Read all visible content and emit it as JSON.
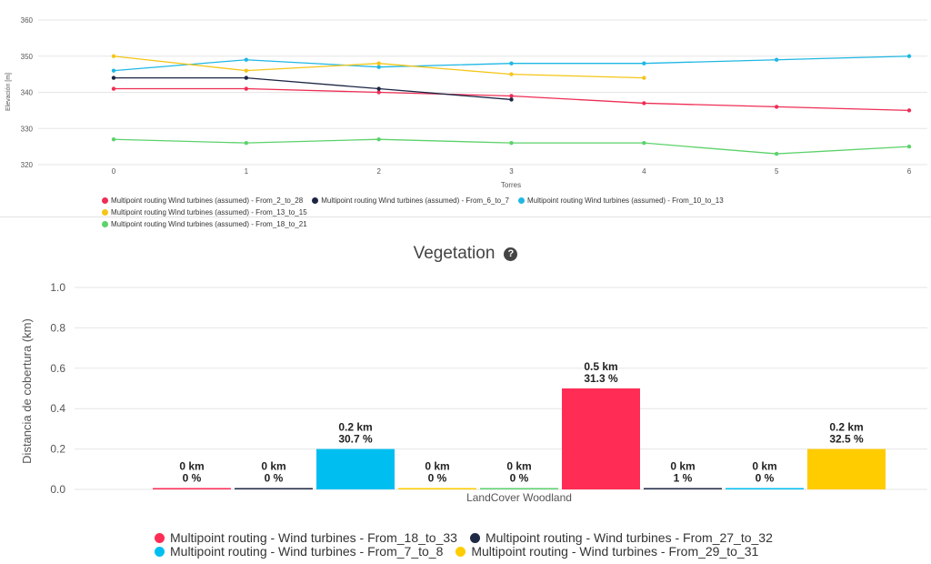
{
  "top_chart": {
    "ylabel": "Elevación [m]",
    "xlabel": "Torres",
    "legend": [
      {
        "label": "Multipoint routing Wind turbines (assumed) - From_2_to_28",
        "color": "#ee2e55"
      },
      {
        "label": "Multipoint routing Wind turbines (assumed) - From_6_to_7",
        "color": "#1c2544"
      },
      {
        "label": "Multipoint routing Wind turbines (assumed) - From_10_to_13",
        "color": "#20b7e4"
      },
      {
        "label": "Multipoint routing Wind turbines (assumed) - From_13_to_15",
        "color": "#f5c518"
      },
      {
        "label": "Multipoint routing Wind turbines (assumed) - From_18_to_21",
        "color": "#5cd26a"
      }
    ]
  },
  "bottom_chart": {
    "title": "Vegetation",
    "help_icon": "help-circle-icon",
    "ylabel": "Distancia de cobertura (km)",
    "category_label": "LandCover Woodland",
    "legend": [
      {
        "label": "Multipoint routing - Wind turbines - From_18_to_33",
        "color": "#ff2d55"
      },
      {
        "label": "Multipoint routing - Wind turbines - From_27_to_32",
        "color": "#1f2a44"
      },
      {
        "label": "Multipoint routing - Wind turbines - From_7_to_8",
        "color": "#00bff0"
      },
      {
        "label": "Multipoint routing - Wind turbines - From_29_to_31",
        "color": "#ffcc00"
      }
    ]
  },
  "chart_data": [
    {
      "type": "line",
      "xlabel": "Torres",
      "ylabel": "Elevación [m]",
      "xlim": [
        0,
        6
      ],
      "ylim": [
        320,
        360
      ],
      "x_ticks": [
        0,
        1,
        2,
        3,
        4,
        5,
        6
      ],
      "y_ticks": [
        320,
        330,
        340,
        350,
        360
      ],
      "grid": true,
      "legend_position": "bottom",
      "series": [
        {
          "name": "Multipoint routing Wind turbines (assumed) - From_2_to_28",
          "color": "#ee2e55",
          "x": [
            0,
            1,
            2,
            3,
            4,
            5,
            6
          ],
          "y": [
            341,
            341,
            340,
            339,
            337,
            336,
            335
          ]
        },
        {
          "name": "Multipoint routing Wind turbines (assumed) - From_6_to_7",
          "color": "#1c2544",
          "x": [
            0,
            1,
            2,
            3
          ],
          "y": [
            344,
            344,
            341,
            338
          ]
        },
        {
          "name": "Multipoint routing Wind turbines (assumed) - From_10_to_13",
          "color": "#20b7e4",
          "x": [
            0,
            1,
            2,
            3,
            4,
            5,
            6
          ],
          "y": [
            346,
            349,
            347,
            348,
            348,
            349,
            350
          ]
        },
        {
          "name": "Multipoint routing Wind turbines (assumed) - From_13_to_15",
          "color": "#f5c518",
          "x": [
            0,
            1,
            2,
            3,
            4
          ],
          "y": [
            350,
            346,
            348,
            345,
            344
          ]
        },
        {
          "name": "Multipoint routing Wind turbines (assumed) - From_18_to_21",
          "color": "#5cd26a",
          "x": [
            0,
            1,
            2,
            3,
            4,
            5,
            6
          ],
          "y": [
            327,
            326,
            327,
            326,
            326,
            323,
            325
          ]
        }
      ]
    },
    {
      "type": "bar",
      "title": "Vegetation",
      "categories": [
        "LandCover Woodland"
      ],
      "ylabel": "Distancia de cobertura (km)",
      "ylim": [
        0,
        1.0
      ],
      "y_ticks": [
        "0.0",
        "0.2",
        "0.4",
        "0.6",
        "0.8",
        "1.0"
      ],
      "grid": true,
      "legend_position": "bottom",
      "bars": [
        {
          "value": 0.0,
          "label_km": "0 km",
          "label_pct": "0 %",
          "color": "#ff2d55"
        },
        {
          "value": 0.0,
          "label_km": "0 km",
          "label_pct": "0 %",
          "color": "#1f2a44"
        },
        {
          "value": 0.2,
          "label_km": "0.2 km",
          "label_pct": "30.7 %",
          "color": "#00bff0"
        },
        {
          "value": 0.0,
          "label_km": "0 km",
          "label_pct": "0 %",
          "color": "#ffcc00"
        },
        {
          "value": 0.0,
          "label_km": "0 km",
          "label_pct": "0 %",
          "color": "#5cd26a"
        },
        {
          "value": 0.5,
          "label_km": "0.5 km",
          "label_pct": "31.3 %",
          "color": "#ff2d55"
        },
        {
          "value": 0.0,
          "label_km": "0 km",
          "label_pct": "1 %",
          "color": "#1f2a44"
        },
        {
          "value": 0.0,
          "label_km": "0 km",
          "label_pct": "0 %",
          "color": "#00bff0"
        },
        {
          "value": 0.2,
          "label_km": "0.2 km",
          "label_pct": "32.5 %",
          "color": "#ffcc00"
        }
      ]
    }
  ]
}
